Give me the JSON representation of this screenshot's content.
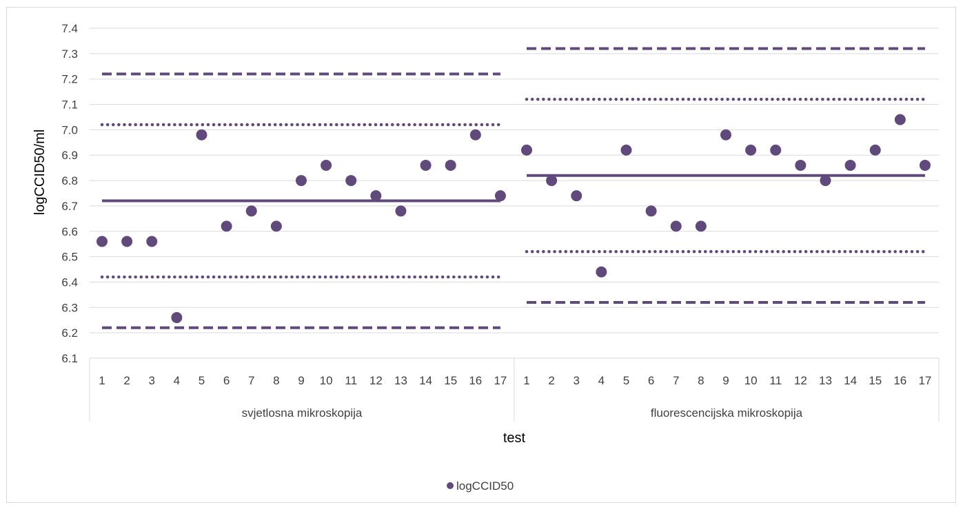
{
  "chart_data": {
    "type": "scatter",
    "ylabel": "logCCID50/ml",
    "xlabel": "test",
    "ylim": [
      6.1,
      7.4
    ],
    "y_ticks": [
      "6.1",
      "6.2",
      "6.3",
      "6.4",
      "6.5",
      "6.6",
      "6.7",
      "6.8",
      "6.9",
      "7.0",
      "7.1",
      "7.2",
      "7.3",
      "7.4"
    ],
    "grid": true,
    "legend_position": "bottom",
    "groups": [
      {
        "label": "svjetlosna mikroskopija",
        "categories": [
          "1",
          "2",
          "3",
          "4",
          "5",
          "6",
          "7",
          "8",
          "9",
          "10",
          "11",
          "12",
          "13",
          "14",
          "15",
          "16",
          "17"
        ],
        "values": [
          6.56,
          6.56,
          6.56,
          6.26,
          6.98,
          6.62,
          6.68,
          6.62,
          6.8,
          6.86,
          6.8,
          6.74,
          6.68,
          6.86,
          6.86,
          6.98,
          6.74
        ],
        "mean": 6.72,
        "inner_limits": [
          6.42,
          7.02
        ],
        "outer_limits": [
          6.22,
          7.22
        ]
      },
      {
        "label": "fluorescencijska mikroskopija",
        "categories": [
          "1",
          "2",
          "3",
          "4",
          "5",
          "6",
          "7",
          "8",
          "9",
          "10",
          "11",
          "12",
          "13",
          "14",
          "15",
          "16",
          "17"
        ],
        "values": [
          6.92,
          6.8,
          6.74,
          6.44,
          6.92,
          6.68,
          6.62,
          6.62,
          6.98,
          6.92,
          6.92,
          6.86,
          6.8,
          6.86,
          6.92,
          7.04,
          6.86
        ],
        "mean": 6.82,
        "inner_limits": [
          6.52,
          7.12
        ],
        "outer_limits": [
          6.32,
          7.32
        ]
      }
    ],
    "series": [
      {
        "name": "logCCID50",
        "color": "#604a7b",
        "marker": "circle"
      }
    ],
    "line_color": "#604a7b",
    "grid_color": "#d9d9d9"
  }
}
